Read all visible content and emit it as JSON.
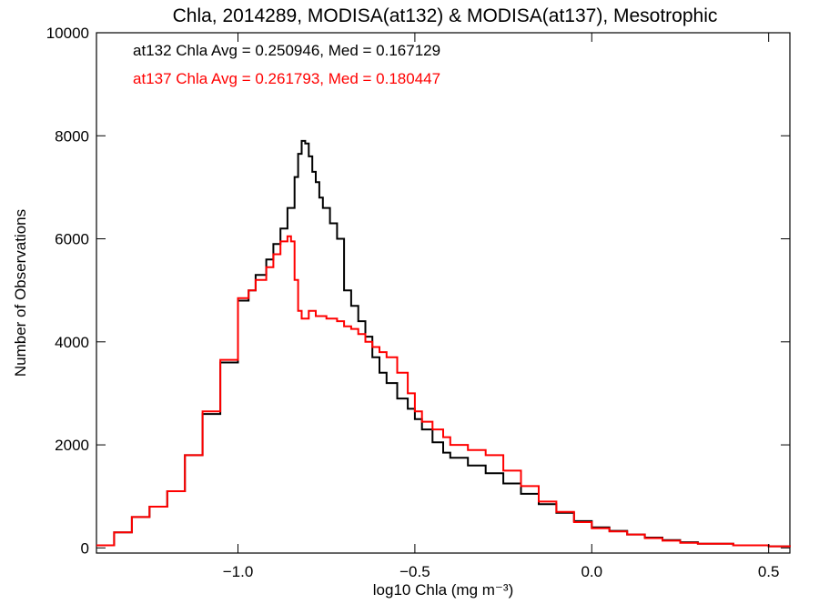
{
  "chart_data": {
    "type": "line",
    "title": "Chla, 2014289, MODISA(at132) & MODISA(at137), Mesotrophic",
    "xlabel": "log10 Chla (mg m⁻³)",
    "ylabel": "Number of Observations",
    "xlim": [
      -1.4,
      0.56
    ],
    "ylim": [
      -100,
      10000
    ],
    "xticks": [
      {
        "value": -1.0,
        "label": "−1.0"
      },
      {
        "value": -0.5,
        "label": "−0.5"
      },
      {
        "value": 0.0,
        "label": "0.0"
      },
      {
        "value": 0.5,
        "label": "0.5"
      }
    ],
    "yticks": [
      {
        "value": 0,
        "label": "0"
      },
      {
        "value": 2000,
        "label": "2000"
      },
      {
        "value": 4000,
        "label": "4000"
      },
      {
        "value": 6000,
        "label": "6000"
      },
      {
        "value": 8000,
        "label": "8000"
      },
      {
        "value": 10000,
        "label": "10000"
      }
    ],
    "grid": false,
    "annotations": [
      {
        "text": "at132 Chla Avg = 0.250946, Med = 0.167129",
        "color": "#000000"
      },
      {
        "text": "at137 Chla Avg = 0.261793, Med = 0.180447",
        "color": "#ff0000"
      }
    ],
    "series": [
      {
        "color": "#000000",
        "x": [
          -1.4,
          -1.35,
          -1.3,
          -1.25,
          -1.2,
          -1.15,
          -1.1,
          -1.05,
          -1.0,
          -0.97,
          -0.95,
          -0.92,
          -0.9,
          -0.88,
          -0.86,
          -0.84,
          -0.83,
          -0.82,
          -0.81,
          -0.8,
          -0.79,
          -0.78,
          -0.77,
          -0.76,
          -0.74,
          -0.72,
          -0.7,
          -0.68,
          -0.66,
          -0.64,
          -0.62,
          -0.6,
          -0.58,
          -0.55,
          -0.52,
          -0.5,
          -0.48,
          -0.45,
          -0.42,
          -0.4,
          -0.35,
          -0.3,
          -0.25,
          -0.2,
          -0.15,
          -0.1,
          -0.05,
          0.0,
          0.05,
          0.1,
          0.15,
          0.2,
          0.25,
          0.3,
          0.4,
          0.5,
          0.56
        ],
        "y": [
          50,
          300,
          600,
          800,
          1100,
          1800,
          2600,
          3600,
          4800,
          5000,
          5300,
          5600,
          5900,
          6200,
          6600,
          7200,
          7650,
          7900,
          7850,
          7600,
          7300,
          7100,
          6800,
          6600,
          6300,
          6000,
          5000,
          4700,
          4400,
          4100,
          3700,
          3400,
          3200,
          2900,
          2700,
          2500,
          2300,
          2050,
          1850,
          1750,
          1600,
          1450,
          1250,
          1050,
          850,
          680,
          520,
          400,
          330,
          260,
          200,
          150,
          110,
          80,
          50,
          30,
          20
        ]
      },
      {
        "color": "#ff0000",
        "x": [
          -1.4,
          -1.35,
          -1.3,
          -1.25,
          -1.2,
          -1.15,
          -1.1,
          -1.05,
          -1.0,
          -0.97,
          -0.95,
          -0.92,
          -0.9,
          -0.88,
          -0.86,
          -0.85,
          -0.84,
          -0.83,
          -0.82,
          -0.8,
          -0.78,
          -0.75,
          -0.72,
          -0.7,
          -0.68,
          -0.66,
          -0.64,
          -0.62,
          -0.6,
          -0.58,
          -0.55,
          -0.52,
          -0.5,
          -0.48,
          -0.45,
          -0.42,
          -0.4,
          -0.35,
          -0.3,
          -0.25,
          -0.2,
          -0.15,
          -0.1,
          -0.05,
          0.0,
          0.05,
          0.1,
          0.15,
          0.2,
          0.25,
          0.3,
          0.4,
          0.5,
          0.56
        ],
        "y": [
          50,
          300,
          600,
          800,
          1100,
          1800,
          2650,
          3650,
          4850,
          5000,
          5200,
          5450,
          5700,
          5950,
          6050,
          5950,
          5200,
          4600,
          4450,
          4600,
          4500,
          4450,
          4400,
          4300,
          4250,
          4150,
          4000,
          3900,
          3800,
          3700,
          3400,
          3000,
          2650,
          2450,
          2300,
          2150,
          2000,
          1900,
          1800,
          1500,
          1200,
          900,
          700,
          500,
          380,
          320,
          260,
          190,
          140,
          100,
          80,
          50,
          30,
          20
        ]
      }
    ]
  }
}
